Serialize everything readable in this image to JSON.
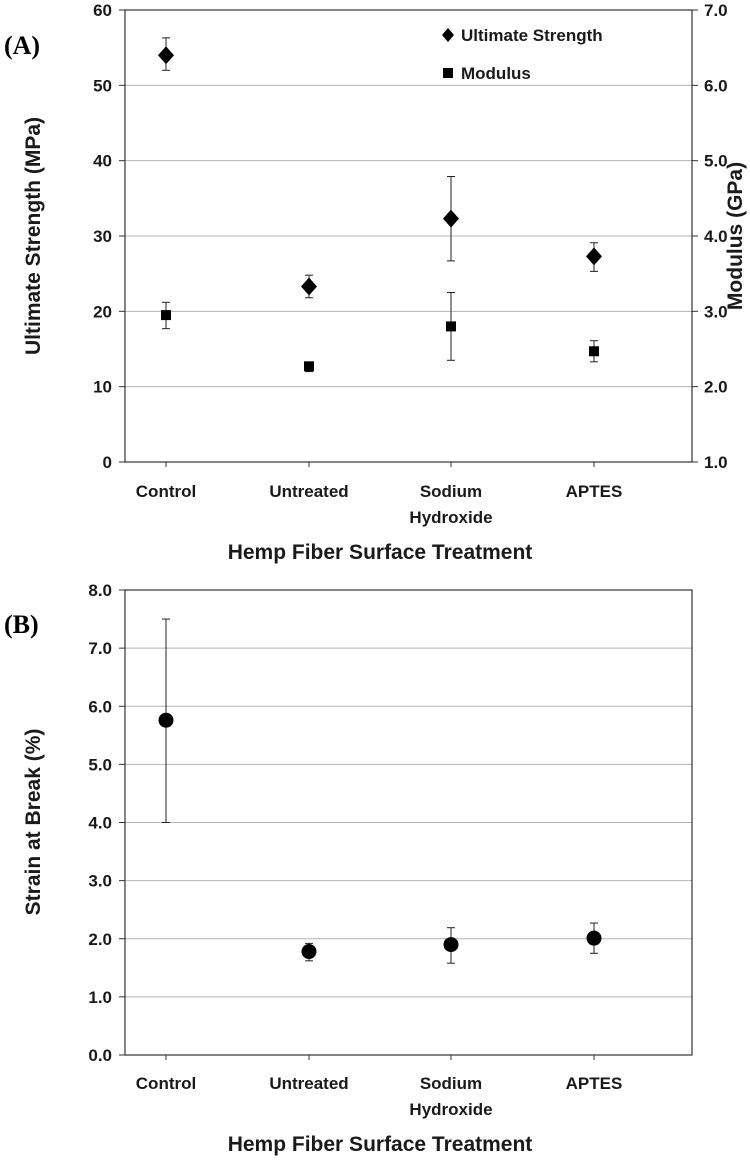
{
  "chart_data": [
    {
      "panel_label": "(A)",
      "type": "scatter",
      "categories": [
        {
          "line1": "Control",
          "line2": ""
        },
        {
          "line1": "Untreated",
          "line2": ""
        },
        {
          "line1": "Sodium",
          "line2": "Hydroxide"
        },
        {
          "line1": "APTES",
          "line2": ""
        }
      ],
      "xlabel": "Hemp Fiber Surface Treatment",
      "ylabel": "Ultimate Strength (MPa)",
      "ylabel_right": "Modulus (GPa)",
      "ylim": [
        0,
        60
      ],
      "yticks": [
        "0",
        "10",
        "20",
        "30",
        "40",
        "50",
        "60"
      ],
      "ylim_right": [
        1.0,
        7.0
      ],
      "yticks_right": [
        "1.0",
        "2.0",
        "3.0",
        "4.0",
        "5.0",
        "6.0",
        "7.0"
      ],
      "grid": true,
      "legend_position": "top-right",
      "series": [
        {
          "name": "Ultimate Strength",
          "marker": "diamond",
          "axis": "left",
          "values": [
            54.0,
            23.3,
            32.3,
            27.3
          ],
          "err_low": [
            52.0,
            21.8,
            26.7,
            25.3
          ],
          "err_high": [
            56.3,
            24.8,
            37.9,
            29.1
          ]
        },
        {
          "name": "Modulus",
          "marker": "square",
          "axis": "right",
          "values": [
            2.95,
            2.27,
            2.8,
            2.47
          ],
          "err_low": [
            2.77,
            2.2,
            2.35,
            2.33
          ],
          "err_high": [
            3.12,
            2.31,
            3.25,
            2.61
          ]
        }
      ]
    },
    {
      "panel_label": "(B)",
      "type": "scatter",
      "categories": [
        {
          "line1": "Control",
          "line2": ""
        },
        {
          "line1": "Untreated",
          "line2": ""
        },
        {
          "line1": "Sodium",
          "line2": "Hydroxide"
        },
        {
          "line1": "APTES",
          "line2": ""
        }
      ],
      "xlabel": "Hemp Fiber Surface Treatment",
      "ylabel": "Strain at Break (%)",
      "ylim": [
        0,
        8
      ],
      "yticks": [
        "0.0",
        "1.0",
        "2.0",
        "3.0",
        "4.0",
        "5.0",
        "6.0",
        "7.0",
        "8.0"
      ],
      "grid": true,
      "series": [
        {
          "name": "Strain at Break",
          "marker": "circle",
          "values": [
            5.76,
            1.78,
            1.9,
            2.01
          ],
          "err_low": [
            4.0,
            1.62,
            1.58,
            1.75
          ],
          "err_high": [
            7.5,
            1.92,
            2.19,
            2.27
          ]
        }
      ]
    }
  ]
}
